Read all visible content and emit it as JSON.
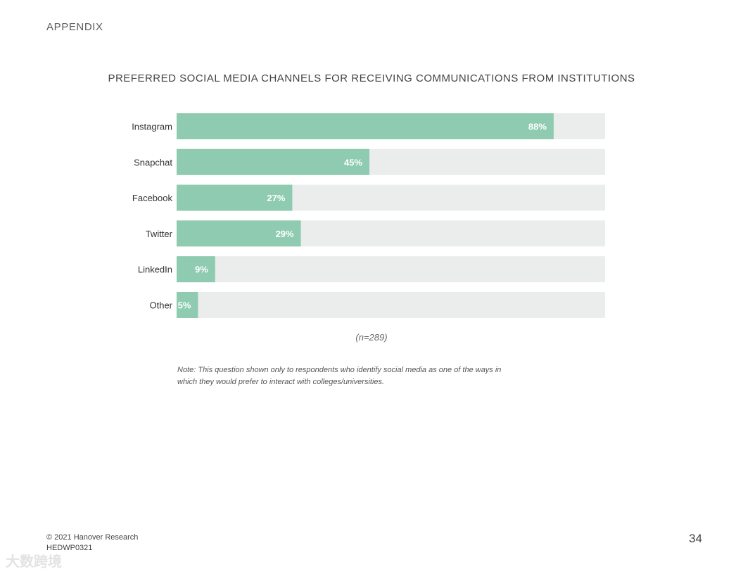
{
  "header": {
    "section_label": "APPENDIX"
  },
  "chart_data": {
    "type": "bar",
    "orientation": "horizontal",
    "title": "PREFERRED SOCIAL MEDIA CHANNELS FOR RECEIVING COMMUNICATIONS FROM INSTITUTIONS",
    "categories": [
      "Instagram",
      "Snapchat",
      "Facebook",
      "Twitter",
      "LinkedIn",
      "Other"
    ],
    "values": [
      88,
      45,
      27,
      29,
      9,
      5
    ],
    "value_labels": [
      "88%",
      "45%",
      "27%",
      "29%",
      "9%",
      "5%"
    ],
    "xlim": [
      0,
      100
    ],
    "grid": false,
    "legend": "none",
    "colors": {
      "bar": "#8ecbb1",
      "track": "#ebeded",
      "value_label": "#ffffff"
    },
    "sample_size": "(n=289)"
  },
  "note": "Note: This question shown only to respondents who identify social media as one of the ways in which they would prefer to interact with colleges/universities.",
  "footer": {
    "copyright": "© 2021 Hanover Research",
    "doc_code": "HEDWP0321",
    "page_number": "34",
    "watermark": "大数跨境"
  }
}
